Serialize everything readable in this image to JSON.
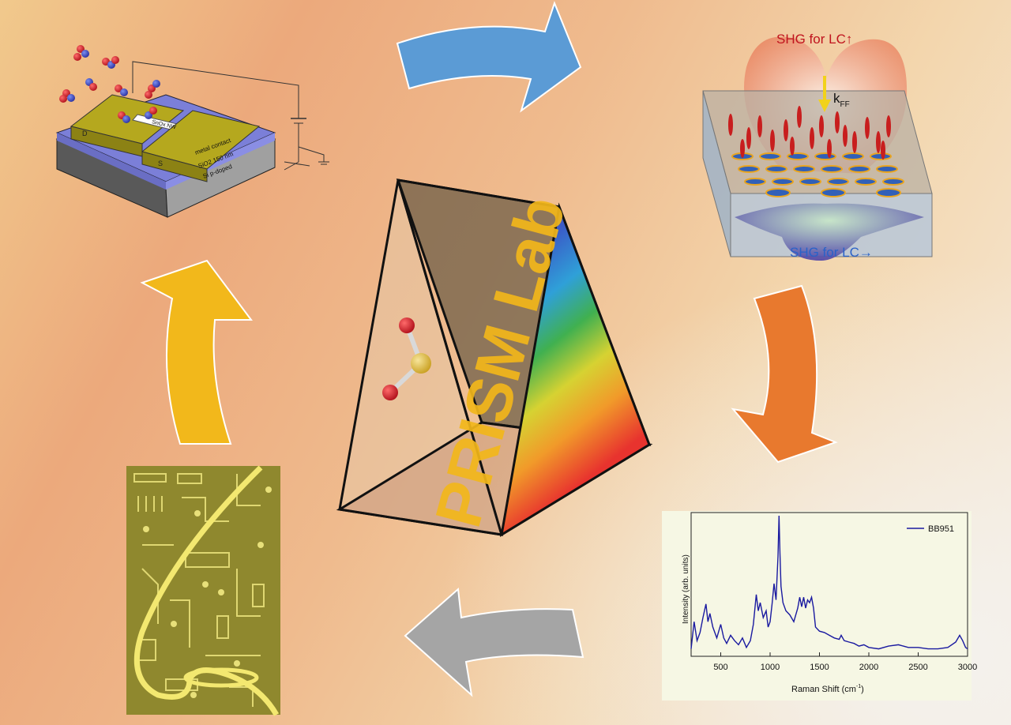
{
  "prism": {
    "title": "PRISM Lab"
  },
  "gas_sensor": {
    "electrode_drain": "D",
    "electrode_source": "S",
    "nanowire": "SnOx NW",
    "layer_contact": "metal contact",
    "layer_oxide": "SiO2 150 nm",
    "layer_substrate": "Si p-doped"
  },
  "shg": {
    "top_label": "SHG for LC↑",
    "bottom_label": "SHG for LC→",
    "k_symbol": "k",
    "k_subscript": "FF"
  },
  "arrows": {
    "top": "#5b9bd5",
    "right": "#e8792e",
    "bottom": "#a5a5a5",
    "left": "#f2b81b"
  },
  "chart_data": {
    "type": "line",
    "xlabel": "Raman Shift (cm",
    "xlabel_superscript": "-1",
    "xlabel_close": ")",
    "ylabel": "Intensity (arb. units)",
    "xlim": [
      200,
      3000
    ],
    "x_ticks": [
      "500",
      "1000",
      "1500",
      "2000",
      "2500",
      "3000"
    ],
    "x_tick_values": [
      500,
      1000,
      1500,
      2000,
      2500,
      3000
    ],
    "ylim": [
      0,
      1
    ],
    "legend_position": "top-right",
    "series": [
      {
        "name": "BB951",
        "color": "#1a1aa0",
        "x": [
          200,
          230,
          260,
          290,
          320,
          350,
          370,
          390,
          420,
          460,
          500,
          530,
          560,
          600,
          640,
          680,
          720,
          760,
          800,
          830,
          860,
          880,
          900,
          930,
          960,
          980,
          1000,
          1020,
          1040,
          1060,
          1080,
          1090,
          1100,
          1110,
          1130,
          1160,
          1200,
          1240,
          1280,
          1300,
          1320,
          1340,
          1360,
          1380,
          1400,
          1420,
          1440,
          1460,
          1500,
          1550,
          1600,
          1650,
          1700,
          1720,
          1750,
          1800,
          1850,
          1900,
          1950,
          2000,
          2100,
          2200,
          2300,
          2400,
          2500,
          2600,
          2700,
          2800,
          2880,
          2920,
          2950,
          2980,
          3000
        ],
        "y": [
          0.02,
          0.22,
          0.08,
          0.14,
          0.25,
          0.35,
          0.22,
          0.28,
          0.18,
          0.1,
          0.2,
          0.1,
          0.06,
          0.12,
          0.08,
          0.05,
          0.1,
          0.03,
          0.08,
          0.2,
          0.42,
          0.3,
          0.36,
          0.25,
          0.3,
          0.18,
          0.22,
          0.35,
          0.5,
          0.38,
          0.7,
          1.0,
          0.72,
          0.48,
          0.36,
          0.3,
          0.27,
          0.22,
          0.32,
          0.4,
          0.33,
          0.4,
          0.32,
          0.38,
          0.36,
          0.4,
          0.32,
          0.18,
          0.15,
          0.14,
          0.12,
          0.1,
          0.09,
          0.12,
          0.08,
          0.07,
          0.06,
          0.04,
          0.05,
          0.03,
          0.02,
          0.04,
          0.05,
          0.03,
          0.03,
          0.02,
          0.02,
          0.03,
          0.07,
          0.12,
          0.08,
          0.03,
          0.02
        ]
      }
    ]
  }
}
